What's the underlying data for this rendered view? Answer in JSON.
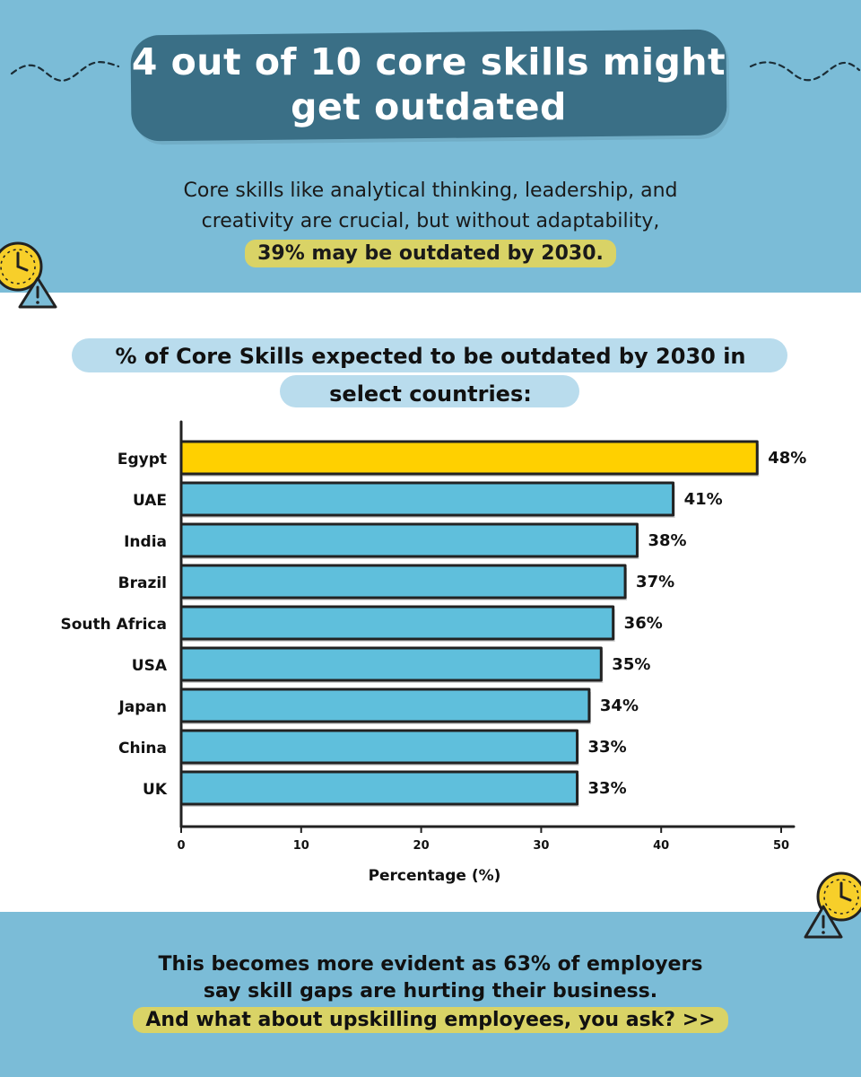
{
  "header": {
    "title_line1": "4 out of 10 core skills might",
    "title_line2": "get outdated",
    "intro_line1": "Core skills like analytical thinking, leadership, and",
    "intro_line2": "creativity are crucial, but without adaptability,",
    "intro_highlight": "39% may be outdated by 2030."
  },
  "chart_data": {
    "type": "bar",
    "orientation": "horizontal",
    "title": "% of Core Skills expected to be outdated by 2030 in select countries:",
    "title_line1": "% of Core Skills expected to be outdated by 2030 in",
    "title_line2": "select countries:",
    "categories": [
      "Egypt",
      "UAE",
      "India",
      "Brazil",
      "South Africa",
      "USA",
      "Japan",
      "China",
      "UK"
    ],
    "values": [
      48,
      41,
      38,
      37,
      36,
      35,
      34,
      33,
      33
    ],
    "value_labels": [
      "48%",
      "41%",
      "38%",
      "37%",
      "36%",
      "35%",
      "34%",
      "33%",
      "33%"
    ],
    "xlabel": "Percentage (%)",
    "ylabel": "",
    "xlim": [
      0,
      50
    ],
    "xticks": [
      0,
      10,
      20,
      30,
      40,
      50
    ],
    "grid": false,
    "colors": {
      "highlight": "#ffd000",
      "default": "#5fbfdc",
      "outline": "#222222"
    },
    "highlight_category": "Egypt"
  },
  "footer": {
    "line1": "This becomes more evident as 63% of employers",
    "line2": "say skill gaps are hurting their business.",
    "highlight": "And what about upskilling employees, you ask? >>"
  },
  "icons": [
    "clock-icon",
    "warning-icon"
  ],
  "colors": {
    "band": "#7bbcd7",
    "title_pill": "#3a6f86",
    "subtitle_pill": "#b9dced",
    "highlight": "#d9d366"
  }
}
